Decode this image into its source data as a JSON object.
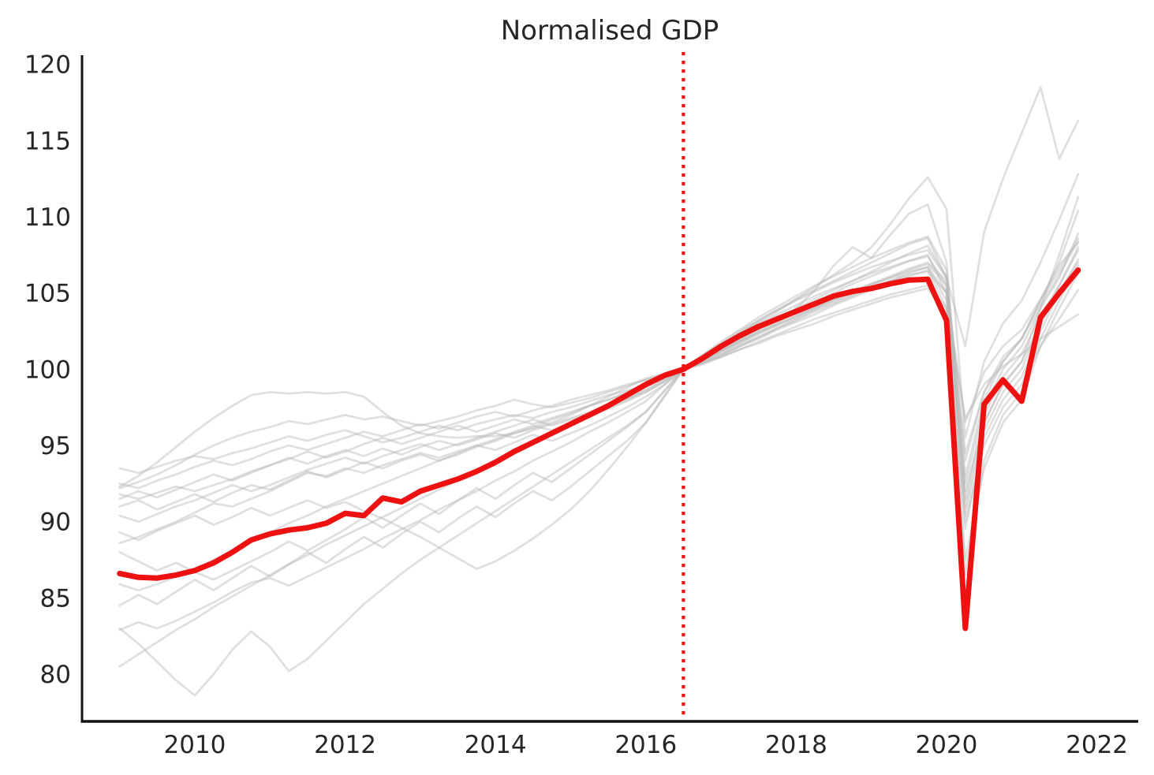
{
  "page": {
    "background": "#ffffff"
  },
  "chart_data": {
    "type": "line",
    "title": "Normalised GDP",
    "xlabel": "",
    "ylabel": "",
    "grid": false,
    "legend": "none",
    "x_axis": {
      "ticks": [
        2010,
        2012,
        2014,
        2016,
        2018,
        2020,
        2022
      ],
      "lim": [
        2008.5,
        2022.55
      ]
    },
    "y_axis": {
      "ticks": [
        80,
        85,
        90,
        95,
        100,
        105,
        110,
        115,
        120
      ],
      "lim": [
        76.9,
        120.6
      ]
    },
    "reference_line": {
      "x": 2016.5,
      "style": "dotted",
      "color": "#ee1111"
    },
    "series_x": {
      "start": 2009.0,
      "step": 0.25
    },
    "normalization_value": 100,
    "highlight_series": {
      "color": "#ee1111",
      "line_width": 7,
      "values": [
        86.6,
        86.35,
        86.3,
        86.5,
        86.8,
        87.3,
        88.0,
        88.8,
        89.2,
        89.45,
        89.6,
        89.9,
        90.55,
        90.4,
        91.55,
        91.3,
        92.0,
        92.4,
        92.8,
        93.3,
        93.9,
        94.6,
        95.2,
        95.8,
        96.4,
        97.0,
        97.6,
        98.3,
        99.0,
        99.6,
        100.0,
        100.7,
        101.5,
        102.2,
        102.8,
        103.3,
        103.8,
        104.3,
        104.8,
        105.1,
        105.3,
        105.6,
        105.85,
        105.9,
        103.2,
        83.0,
        97.7,
        99.3,
        97.9,
        103.4,
        105.0,
        106.5
      ]
    },
    "background_series": {
      "color": "#b9b9b9",
      "opacity": 0.45,
      "line_width": 2.7,
      "lines": [
        [
          92.3,
          93.0,
          93.9,
          94.9,
          95.9,
          96.8,
          97.6,
          98.3,
          98.5,
          98.4,
          98.5,
          98.4,
          98.5,
          98.2,
          97.2,
          96.3,
          95.8,
          95.6,
          95.5,
          95.6,
          95.6,
          95.8,
          96.1,
          96.5,
          97.0,
          97.6,
          98.2,
          98.8,
          99.4,
          99.7,
          100.0,
          100.4,
          100.9,
          101.5,
          102.1,
          102.7,
          103.3,
          103.9,
          104.4,
          104.9,
          105.4,
          105.8,
          106.2,
          106.4,
          105.0,
          96.5,
          99.8,
          101.5,
          102.6,
          104.6,
          106.8,
          108.3
        ],
        [
          93.5,
          93.2,
          93.6,
          94.0,
          94.3,
          94.1,
          94.5,
          94.8,
          95.2,
          95.6,
          95.3,
          95.7,
          96.0,
          95.6,
          95.2,
          95.5,
          95.9,
          96.3,
          96.0,
          96.4,
          96.7,
          97.0,
          96.8,
          97.2,
          97.5,
          97.9,
          98.3,
          98.6,
          99.0,
          99.5,
          100.0,
          100.6,
          101.2,
          101.9,
          102.5,
          103.0,
          104.0,
          105.2,
          106.8,
          108.0,
          107.3,
          108.8,
          110.2,
          110.8,
          107.0,
          92.0,
          96.5,
          99.0,
          100.5,
          104.0,
          107.5,
          111.3
        ],
        [
          92.2,
          92.6,
          93.1,
          93.7,
          94.4,
          95.0,
          95.5,
          95.9,
          96.2,
          96.6,
          96.4,
          96.7,
          97.0,
          96.7,
          96.9,
          96.6,
          96.3,
          96.6,
          96.9,
          97.3,
          97.6,
          98.0,
          97.7,
          97.5,
          97.8,
          98.1,
          98.5,
          98.9,
          99.3,
          99.6,
          100.0,
          100.7,
          101.5,
          102.3,
          103.1,
          103.8,
          104.6,
          105.4,
          106.2,
          107.0,
          108.0,
          109.5,
          111.2,
          112.6,
          110.5,
          95.5,
          100.5,
          103.0,
          104.5,
          107.0,
          109.8,
          112.8
        ],
        [
          88.6,
          89.0,
          89.5,
          90.0,
          90.6,
          91.2,
          91.0,
          91.5,
          92.0,
          92.6,
          93.2,
          93.0,
          93.5,
          93.2,
          93.7,
          94.1,
          94.5,
          94.2,
          94.6,
          95.0,
          95.4,
          95.9,
          96.3,
          96.0,
          96.4,
          96.9,
          97.4,
          97.9,
          98.5,
          99.2,
          100.0,
          100.8,
          101.6,
          102.4,
          103.2,
          103.9,
          104.6,
          105.2,
          105.8,
          106.4,
          107.0,
          107.6,
          108.2,
          108.6,
          106.0,
          101.5,
          109.0,
          112.5,
          115.5,
          118.5,
          113.8,
          116.3
        ],
        [
          91.8,
          91.5,
          91.9,
          92.3,
          92.0,
          92.4,
          92.8,
          93.3,
          93.7,
          94.2,
          93.8,
          94.3,
          94.7,
          94.3,
          94.8,
          94.4,
          94.9,
          95.3,
          95.0,
          95.4,
          95.8,
          95.5,
          96.0,
          96.4,
          96.8,
          97.2,
          97.7,
          98.1,
          98.6,
          99.3,
          100.0,
          100.5,
          101.1,
          101.7,
          102.3,
          102.9,
          103.4,
          104.0,
          104.5,
          105.0,
          105.5,
          106.0,
          106.5,
          106.9,
          105.5,
          91.5,
          97.0,
          99.5,
          101.0,
          103.5,
          105.5,
          107.8
        ],
        [
          91.0,
          91.4,
          90.8,
          91.3,
          91.8,
          91.3,
          91.9,
          92.4,
          92.1,
          92.7,
          93.3,
          92.9,
          93.4,
          93.9,
          93.5,
          94.0,
          94.4,
          94.0,
          94.5,
          95.0,
          94.7,
          95.2,
          95.7,
          95.3,
          95.8,
          96.3,
          96.9,
          97.5,
          98.2,
          99.0,
          100.0,
          100.4,
          100.9,
          101.5,
          102.0,
          102.6,
          103.1,
          103.6,
          104.2,
          104.7,
          105.2,
          105.7,
          106.1,
          106.5,
          104.0,
          86.5,
          94.0,
          97.0,
          98.5,
          102.0,
          104.5,
          106.8
        ],
        [
          80.5,
          81.3,
          82.1,
          82.9,
          83.6,
          84.4,
          85.1,
          85.8,
          86.5,
          87.2,
          87.8,
          88.5,
          89.1,
          89.7,
          90.3,
          90.9,
          91.5,
          92.1,
          92.7,
          93.3,
          93.9,
          94.5,
          95.1,
          95.7,
          96.3,
          96.9,
          97.5,
          98.1,
          98.7,
          99.4,
          100.0,
          100.7,
          101.4,
          102.0,
          102.7,
          103.3,
          104.0,
          104.6,
          105.2,
          105.8,
          106.4,
          107.0,
          107.6,
          108.1,
          106.0,
          93.0,
          98.0,
          100.5,
          102.0,
          104.5,
          106.5,
          108.6
        ],
        [
          83.0,
          82.0,
          80.8,
          79.6,
          78.6,
          80.0,
          81.6,
          82.8,
          81.8,
          80.2,
          81.0,
          82.2,
          83.4,
          84.6,
          85.6,
          86.6,
          87.5,
          88.3,
          89.1,
          89.9,
          90.7,
          91.5,
          92.3,
          93.1,
          93.9,
          94.7,
          95.5,
          96.3,
          97.2,
          98.6,
          100.0,
          100.9,
          101.8,
          102.6,
          103.4,
          104.1,
          104.8,
          105.5,
          106.1,
          106.7,
          107.3,
          107.8,
          108.3,
          108.7,
          106.5,
          90.5,
          96.0,
          98.5,
          100.0,
          103.0,
          105.5,
          108.0
        ],
        [
          82.9,
          83.4,
          83.0,
          83.5,
          84.1,
          84.7,
          85.4,
          86.0,
          86.3,
          85.8,
          86.4,
          87.0,
          87.6,
          88.2,
          88.9,
          89.5,
          90.1,
          90.8,
          91.4,
          92.0,
          92.7,
          93.3,
          94.0,
          94.6,
          95.2,
          95.9,
          96.5,
          97.2,
          97.9,
          99.0,
          100.0,
          100.6,
          101.3,
          101.9,
          102.6,
          103.2,
          103.8,
          104.4,
          105.0,
          105.6,
          106.1,
          106.6,
          107.1,
          107.5,
          105.0,
          89.5,
          95.5,
          98.0,
          99.5,
          102.5,
          105.0,
          107.2
        ],
        [
          85.9,
          85.5,
          85.9,
          86.4,
          86.9,
          87.5,
          88.1,
          88.7,
          89.3,
          89.9,
          90.4,
          91.0,
          91.5,
          92.0,
          92.5,
          93.0,
          93.5,
          94.0,
          94.4,
          94.9,
          95.3,
          95.8,
          96.2,
          96.7,
          97.1,
          97.6,
          98.0,
          98.5,
          99.0,
          99.5,
          100.0,
          100.5,
          101.0,
          101.6,
          102.1,
          102.7,
          103.2,
          103.8,
          104.3,
          104.8,
          105.3,
          105.8,
          106.3,
          106.7,
          105.0,
          92.5,
          97.5,
          100.0,
          101.5,
          104.0,
          106.0,
          108.9
        ],
        [
          89.3,
          88.8,
          89.4,
          89.9,
          90.4,
          89.8,
          90.3,
          90.9,
          90.4,
          90.9,
          91.4,
          90.9,
          91.3,
          90.7,
          90.2,
          89.6,
          89.0,
          88.3,
          87.6,
          86.9,
          87.4,
          88.1,
          88.9,
          89.8,
          90.8,
          92.0,
          93.4,
          94.9,
          96.5,
          98.3,
          100.0,
          100.8,
          101.6,
          102.3,
          103.0,
          103.6,
          104.2,
          104.8,
          105.3,
          105.8,
          106.3,
          106.7,
          107.1,
          107.4,
          105.5,
          91.0,
          96.5,
          99.0,
          100.5,
          103.0,
          105.0,
          107.0
        ],
        [
          88.0,
          87.4,
          86.8,
          87.3,
          86.7,
          86.2,
          86.8,
          87.4,
          88.0,
          88.7,
          88.1,
          88.8,
          89.5,
          90.3,
          89.6,
          90.4,
          91.2,
          90.5,
          91.4,
          92.2,
          91.5,
          92.4,
          93.2,
          92.6,
          93.5,
          94.4,
          95.3,
          96.2,
          97.2,
          98.6,
          100.0,
          100.9,
          101.7,
          102.5,
          103.2,
          103.9,
          104.5,
          105.1,
          105.7,
          106.2,
          106.7,
          107.1,
          107.5,
          107.8,
          106.0,
          94.5,
          98.5,
          100.8,
          102.0,
          104.2,
          106.2,
          108.4
        ],
        [
          84.5,
          85.2,
          84.6,
          85.4,
          86.2,
          85.5,
          86.3,
          87.1,
          86.4,
          87.2,
          88.0,
          87.3,
          88.2,
          89.0,
          88.3,
          89.2,
          90.0,
          89.3,
          90.2,
          91.0,
          90.3,
          91.2,
          92.0,
          91.4,
          92.3,
          93.3,
          94.3,
          95.3,
          96.5,
          98.2,
          100.0,
          100.6,
          101.2,
          101.8,
          102.4,
          103.0,
          103.5,
          104.1,
          104.6,
          105.1,
          105.6,
          106.0,
          106.4,
          106.7,
          104.5,
          87.5,
          93.5,
          96.5,
          98.0,
          101.5,
          104.0,
          106.3
        ],
        [
          91.5,
          92.0,
          91.6,
          92.1,
          92.6,
          93.1,
          92.7,
          93.2,
          93.7,
          94.1,
          94.6,
          94.2,
          94.6,
          95.1,
          95.5,
          95.1,
          95.5,
          95.9,
          96.3,
          95.9,
          96.3,
          96.7,
          96.4,
          96.8,
          97.2,
          97.6,
          98.0,
          98.4,
          98.9,
          99.4,
          100.0,
          100.6,
          101.2,
          101.8,
          102.4,
          102.9,
          103.5,
          104.0,
          104.6,
          105.1,
          105.6,
          106.1,
          106.6,
          107.0,
          105.8,
          94.0,
          98.5,
          100.5,
          102.0,
          104.5,
          107.0,
          110.4
        ],
        [
          90.4,
          90.0,
          90.5,
          91.0,
          91.4,
          91.9,
          92.4,
          92.0,
          92.4,
          92.9,
          93.4,
          93.8,
          94.2,
          93.8,
          94.3,
          94.7,
          95.1,
          94.7,
          95.1,
          95.5,
          95.9,
          96.3,
          96.7,
          96.3,
          96.7,
          97.1,
          97.5,
          98.0,
          98.5,
          99.2,
          100.0,
          100.3,
          100.8,
          101.3,
          101.8,
          102.3,
          102.8,
          103.3,
          103.7,
          104.1,
          104.5,
          104.9,
          105.2,
          105.5,
          104.0,
          96.8,
          99.0,
          100.2,
          101.0,
          102.0,
          102.8,
          103.6
        ],
        [
          92.5,
          92.2,
          92.7,
          93.1,
          93.6,
          94.0,
          93.7,
          94.1,
          94.6,
          95.0,
          94.7,
          95.1,
          95.5,
          95.9,
          95.6,
          96.0,
          96.4,
          96.1,
          96.5,
          96.9,
          97.2,
          96.9,
          97.3,
          97.6,
          98.0,
          98.3,
          98.6,
          99.0,
          99.3,
          99.7,
          100.0,
          100.4,
          100.8,
          101.3,
          101.7,
          102.2,
          102.6,
          103.0,
          103.5,
          103.9,
          104.3,
          104.7,
          105.0,
          105.3,
          103.5,
          90.0,
          95.0,
          97.5,
          99.0,
          101.5,
          103.3,
          105.2
        ]
      ]
    },
    "styles": {
      "axis_color": "#111111",
      "text_color": "#262626",
      "background": "#ffffff"
    }
  }
}
